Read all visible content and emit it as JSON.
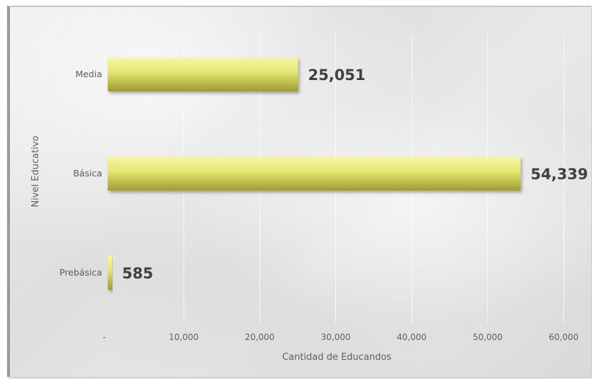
{
  "chart_data": {
    "type": "bar",
    "orientation": "horizontal",
    "categories": [
      "Media",
      "Básica",
      "Prebásica"
    ],
    "values": [
      25051,
      54339,
      585
    ],
    "data_labels": [
      "25,051",
      "54,339",
      "585"
    ],
    "xlabel": "Cantidad de Educandos",
    "ylabel": "Nivel Educativo",
    "xlim": [
      0,
      60000
    ],
    "x_ticks": [
      0,
      10000,
      20000,
      30000,
      40000,
      50000,
      60000
    ],
    "x_tick_labels": [
      "-",
      "10,000",
      "20,000",
      "30,000",
      "40,000",
      "50,000",
      "60,000"
    ],
    "grid": "vertical",
    "bar_color": "#e4e472",
    "legend": "none"
  }
}
